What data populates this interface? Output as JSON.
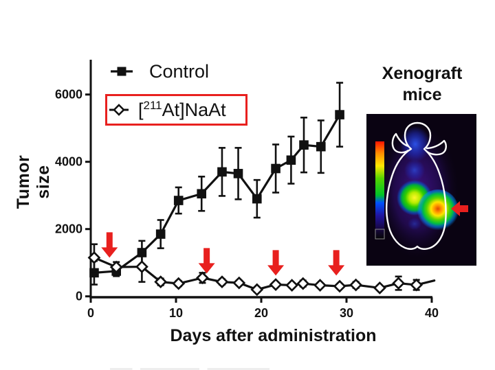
{
  "figure": {
    "legend": {
      "control_label": "Control",
      "treat_prefix": "[",
      "treat_isotope": "211",
      "treat_suffix": "At]NaAt"
    },
    "inset": {
      "title_line1": "Xenograft",
      "title_line2": "mice"
    },
    "colors": {
      "accent_red": "#e8201e",
      "ink_black": "#111111",
      "marker_fill_open": "#ffffff"
    }
  },
  "chart_data": {
    "type": "line",
    "title": "",
    "xlabel": "Days after administration",
    "ylabel": "Tumor size",
    "xlim": [
      0,
      40
    ],
    "ylim": [
      0,
      7000
    ],
    "x_ticks": [
      0,
      10,
      20,
      30,
      40
    ],
    "y_ticks": [
      0,
      2000,
      4000,
      6000
    ],
    "grid": false,
    "legend_position": "top-left-inside",
    "series": [
      {
        "name": "Control",
        "marker": "filled-square",
        "x": [
          0.4,
          3,
          6,
          8.2,
          10.3,
          13,
          15.4,
          17.3,
          19.5,
          21.7,
          23.5,
          25,
          27,
          29.2
        ],
        "y": [
          700,
          750,
          1300,
          1850,
          2850,
          3050,
          3700,
          3650,
          2900,
          3800,
          4050,
          4500,
          4450,
          5400
        ],
        "err": [
          350,
          150,
          350,
          420,
          390,
          510,
          715,
          765,
          560,
          715,
          700,
          815,
          780,
          950
        ]
      },
      {
        "name": "[211At]NaAt",
        "marker": "open-diamond",
        "x": [
          0.4,
          3,
          6,
          8.2,
          10.3,
          13.1,
          15.4,
          17.4,
          19.5,
          21.7,
          23.6,
          24.9,
          26.9,
          29.2,
          31.1,
          33.9,
          36.1,
          38.2
        ],
        "y": [
          1150,
          870,
          880,
          430,
          380,
          550,
          430,
          400,
          200,
          350,
          330,
          380,
          330,
          300,
          340,
          250,
          390,
          340
        ],
        "err": [
          400,
          150,
          450,
          100,
          80,
          150,
          80,
          70,
          70,
          0,
          0,
          90,
          0,
          60,
          90,
          0,
          200,
          150
        ],
        "tail_point": {
          "x": 40.3,
          "y": 470
        }
      }
    ],
    "annotation_arrows": {
      "meaning": "red down-arrows marking administration days",
      "days": [
        2.2,
        13.6,
        21.7,
        28.8
      ],
      "tip_values": [
        1150,
        680,
        620,
        620
      ]
    }
  }
}
